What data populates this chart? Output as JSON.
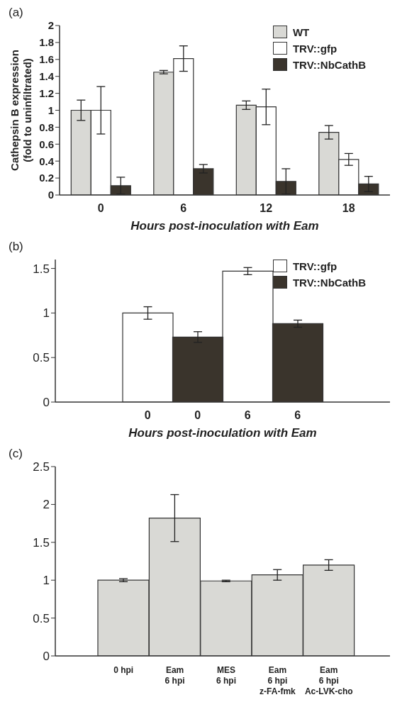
{
  "chart_data": [
    {
      "type": "bar",
      "title": "(a)",
      "xlabel": "Hours post-inoculation with Eam",
      "ylabel": "Cathepsin B expression\n(fold to uninfiltrated)",
      "categories": [
        "0",
        "6",
        "12",
        "18"
      ],
      "series": [
        {
          "name": "WT",
          "color": "#d9d9d5",
          "values": [
            1.0,
            1.45,
            1.06,
            0.74
          ],
          "errors": [
            0.12,
            0.02,
            0.05,
            0.08
          ]
        },
        {
          "name": "TRV::gfp",
          "color": "#ffffff",
          "values": [
            1.0,
            1.61,
            1.04,
            0.42
          ],
          "errors": [
            0.28,
            0.15,
            0.21,
            0.07
          ]
        },
        {
          "name": "TRV::NbCathB",
          "color": "#3a342c",
          "values": [
            0.11,
            0.31,
            0.16,
            0.13
          ],
          "errors": [
            0.1,
            0.05,
            0.15,
            0.09
          ]
        }
      ],
      "ylim": [
        0,
        2
      ],
      "yticks": [
        0,
        0.2,
        0.4,
        0.6,
        0.8,
        1,
        1.2,
        1.4,
        1.6,
        1.8,
        2
      ],
      "legend": "top right"
    },
    {
      "type": "bar",
      "title": "(b)",
      "xlabel": "Hours post-inoculation with Eam",
      "categories": [
        "0",
        "0",
        "6",
        "6"
      ],
      "stacked": true,
      "series": [
        {
          "name": "TRV::gfp",
          "color": "#ffffff",
          "values": [
            1.0,
            null,
            1.47,
            null
          ],
          "errors": [
            0.07,
            null,
            0.04,
            null
          ]
        },
        {
          "name": "TRV::NbCathB",
          "color": "#3a342c",
          "values": [
            null,
            0.73,
            null,
            0.88
          ],
          "errors": [
            null,
            0.06,
            null,
            0.04
          ]
        }
      ],
      "ylim": [
        0,
        1.6
      ],
      "yticks": [
        0,
        0.5,
        1,
        1.5
      ],
      "legend": "top right"
    },
    {
      "type": "bar",
      "title": "(c)",
      "categories": [
        "0 hpi",
        "Eam\n6 hpi",
        "MES\n6 hpi",
        "Eam\n6 hpi\nz-FA-fmk",
        "Eam\n6 hpi\nAc-LVK-cho"
      ],
      "values": [
        1.0,
        1.82,
        0.99,
        1.07,
        1.2
      ],
      "errors": [
        0.02,
        0.31,
        0.01,
        0.07,
        0.07
      ],
      "color": "#d9d9d5",
      "ylim": [
        0,
        2.5
      ],
      "yticks": [
        0,
        0.5,
        1,
        1.5,
        2,
        2.5
      ]
    }
  ]
}
